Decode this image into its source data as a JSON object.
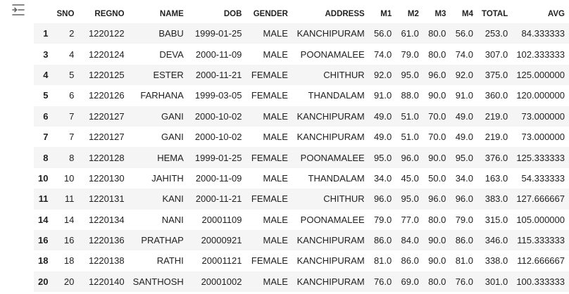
{
  "table": {
    "columns": [
      "SNO",
      "REGNO",
      "NAME",
      "DOB",
      "GENDER",
      "ADDRESS",
      "M1",
      "M2",
      "M3",
      "M4",
      "TOTAL",
      "AVG"
    ],
    "rows": [
      {
        "index": "1",
        "cells": [
          "2",
          "1220122",
          "BABU",
          "1999-01-25",
          "MALE",
          "KANCHIPURAM",
          "56.0",
          "61.0",
          "80.0",
          "56.0",
          "253.0",
          "84.333333"
        ]
      },
      {
        "index": "3",
        "cells": [
          "4",
          "1220124",
          "DEVA",
          "2000-11-09",
          "MALE",
          "POONAMALEE",
          "74.0",
          "79.0",
          "80.0",
          "74.0",
          "307.0",
          "102.333333"
        ]
      },
      {
        "index": "4",
        "cells": [
          "5",
          "1220125",
          "ESTER",
          "2000-11-21",
          "FEMALE",
          "CHITHUR",
          "92.0",
          "95.0",
          "96.0",
          "92.0",
          "375.0",
          "125.000000"
        ]
      },
      {
        "index": "5",
        "cells": [
          "6",
          "1220126",
          "FARHANA",
          "1999-03-05",
          "FEMALE",
          "THANDALAM",
          "91.0",
          "88.0",
          "90.0",
          "91.0",
          "360.0",
          "120.000000"
        ]
      },
      {
        "index": "6",
        "cells": [
          "7",
          "1220127",
          "GANI",
          "2000-10-02",
          "MALE",
          "KANCHIPURAM",
          "49.0",
          "51.0",
          "70.0",
          "49.0",
          "219.0",
          "73.000000"
        ]
      },
      {
        "index": "7",
        "cells": [
          "7",
          "1220127",
          "GANI",
          "2000-10-02",
          "MALE",
          "KANCHIPURAM",
          "49.0",
          "51.0",
          "70.0",
          "49.0",
          "219.0",
          "73.000000"
        ]
      },
      {
        "index": "8",
        "cells": [
          "8",
          "1220128",
          "HEMA",
          "1999-01-25",
          "FEMALE",
          "POONAMALEE",
          "95.0",
          "96.0",
          "90.0",
          "95.0",
          "376.0",
          "125.333333"
        ]
      },
      {
        "index": "10",
        "cells": [
          "10",
          "1220130",
          "JAHITH",
          "2000-11-09",
          "MALE",
          "THANDALAM",
          "34.0",
          "45.0",
          "50.0",
          "34.0",
          "163.0",
          "54.333333"
        ]
      },
      {
        "index": "11",
        "cells": [
          "11",
          "1220131",
          "KANI",
          "2000-11-21",
          "FEMALE",
          "CHITHUR",
          "96.0",
          "95.0",
          "96.0",
          "96.0",
          "383.0",
          "127.666667"
        ]
      },
      {
        "index": "14",
        "cells": [
          "14",
          "1220134",
          "NANI",
          "20001109",
          "MALE",
          "POONAMALEE",
          "79.0",
          "77.0",
          "80.0",
          "79.0",
          "315.0",
          "105.000000"
        ]
      },
      {
        "index": "16",
        "cells": [
          "16",
          "1220136",
          "PRATHAP",
          "20000921",
          "MALE",
          "KANCHIPURAM",
          "86.0",
          "84.0",
          "90.0",
          "86.0",
          "346.0",
          "115.333333"
        ]
      },
      {
        "index": "18",
        "cells": [
          "18",
          "1220138",
          "RATHI",
          "20001121",
          "FEMALE",
          "KANCHIPURAM",
          "81.0",
          "86.0",
          "90.0",
          "81.0",
          "338.0",
          "112.666667"
        ]
      },
      {
        "index": "20",
        "cells": [
          "20",
          "1220140",
          "SANTHOSH",
          "20001002",
          "MALE",
          "KANCHIPURAM",
          "76.0",
          "69.0",
          "80.0",
          "76.0",
          "301.0",
          "100.333333"
        ]
      }
    ]
  }
}
